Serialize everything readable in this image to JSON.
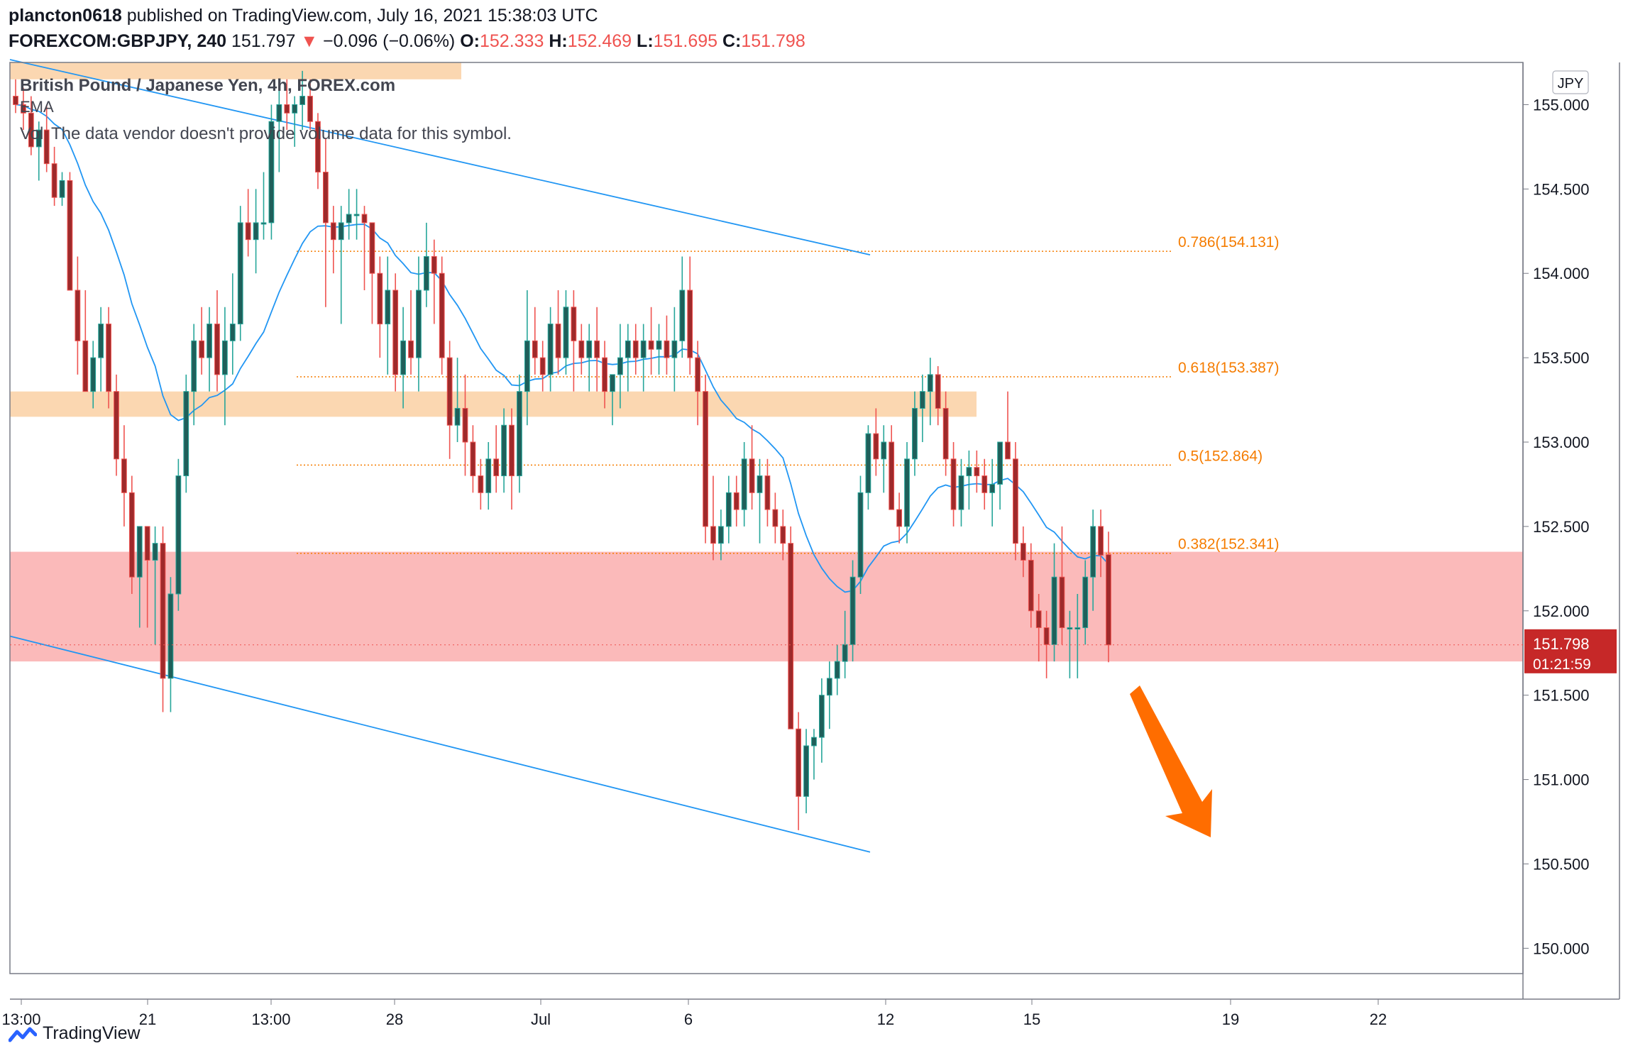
{
  "header": {
    "author": "plancton0618",
    "published_text": "published on TradingView.com, July 16, 2021 15:38:03 UTC",
    "symbol": "FOREXCOM:GBPJPY, 240",
    "last": "151.797",
    "arrow": "▼",
    "change": "−0.096 (−0.06%)",
    "o_label": "O:",
    "o_value": "152.333",
    "h_label": "H:",
    "h_value": "152.469",
    "l_label": "L:",
    "l_value": "151.695",
    "c_label": "C:",
    "c_value": "151.798"
  },
  "legend": {
    "title": "British Pound / Japanese Yen, 4h, FOREX.com",
    "ema": "EMA",
    "vol_prefix": "Vol",
    "volume_note": "The data vendor doesn't provide volume data for this symbol."
  },
  "footer": {
    "brand": "TradingView"
  },
  "colors": {
    "up": "#26a69a",
    "up_fill": "#1f5f5a",
    "down": "#ef5350",
    "down_fill": "#9e2a2b",
    "ema": "#2196f3",
    "channel": "#2196f3",
    "fib": "#f57c00",
    "zone_orange": "#fbd3a8",
    "zone_red": "#fbb3b2",
    "arrow": "#ff6d00",
    "price_tag": "#c62828"
  },
  "chart_data": {
    "type": "candlestick",
    "symbol": "GBPJPY",
    "interval": "4h",
    "currency": "JPY",
    "y_axis": {
      "ticks": [
        "150.000",
        "150.500",
        "151.000",
        "151.500",
        "152.000",
        "152.500",
        "153.000",
        "153.500",
        "154.000",
        "154.500",
        "155.000"
      ],
      "range": [
        149.85,
        155.25
      ]
    },
    "x_axis": {
      "ticks": [
        "13:00",
        "21",
        "13:00",
        "28",
        "Jul",
        "6",
        "12",
        "15",
        "19",
        "22"
      ]
    },
    "current_price": {
      "value": "151.798",
      "countdown": "01:21:59"
    },
    "fibonacci": [
      {
        "label": "0.786(154.131)",
        "level": 0.786,
        "price": 154.131
      },
      {
        "label": "0.618(153.387)",
        "level": 0.618,
        "price": 153.387
      },
      {
        "label": "0.5(152.864)",
        "level": 0.5,
        "price": 152.864
      },
      {
        "label": "0.382(152.341)",
        "level": 0.382,
        "price": 152.341
      }
    ],
    "zones": [
      {
        "kind": "resistance",
        "from": 155.15,
        "to": 155.25
      },
      {
        "kind": "resistance",
        "from": 153.15,
        "to": 153.3
      },
      {
        "kind": "support",
        "from": 151.7,
        "to": 152.35
      }
    ],
    "channel": {
      "upper": {
        "start": 155.25,
        "end": 154.11
      },
      "lower": {
        "start": 151.85,
        "end": 150.57
      }
    },
    "bias_arrow": "down",
    "candles": [
      [
        155.05,
        155.15,
        154.95,
        155.0
      ],
      [
        155.0,
        155.1,
        154.85,
        154.95
      ],
      [
        154.95,
        155.05,
        154.7,
        154.75
      ],
      [
        154.75,
        154.9,
        154.55,
        154.85
      ],
      [
        154.85,
        155.0,
        154.6,
        154.65
      ],
      [
        154.65,
        154.75,
        154.4,
        154.45
      ],
      [
        154.45,
        154.6,
        154.4,
        154.55
      ],
      [
        154.55,
        154.6,
        153.9,
        153.9
      ],
      [
        153.9,
        154.1,
        153.4,
        153.6
      ],
      [
        153.6,
        153.9,
        153.3,
        153.3
      ],
      [
        153.3,
        153.6,
        153.2,
        153.5
      ],
      [
        153.5,
        153.8,
        153.3,
        153.7
      ],
      [
        153.7,
        153.8,
        153.2,
        153.3
      ],
      [
        153.3,
        153.4,
        152.8,
        152.9
      ],
      [
        152.9,
        153.1,
        152.5,
        152.7
      ],
      [
        152.7,
        152.8,
        152.1,
        152.2
      ],
      [
        152.2,
        152.5,
        151.9,
        152.5
      ],
      [
        152.5,
        152.5,
        151.9,
        152.3
      ],
      [
        152.3,
        152.5,
        151.8,
        152.4
      ],
      [
        152.4,
        152.5,
        151.4,
        151.6
      ],
      [
        151.6,
        152.2,
        151.4,
        152.1
      ],
      [
        152.1,
        152.9,
        152.0,
        152.8
      ],
      [
        152.8,
        153.4,
        152.7,
        153.3
      ],
      [
        153.3,
        153.7,
        153.1,
        153.6
      ],
      [
        153.6,
        153.8,
        153.4,
        153.5
      ],
      [
        153.5,
        153.8,
        153.3,
        153.7
      ],
      [
        153.7,
        153.9,
        153.3,
        153.4
      ],
      [
        153.4,
        153.8,
        153.1,
        153.6
      ],
      [
        153.6,
        154.0,
        153.4,
        153.7
      ],
      [
        153.7,
        154.4,
        153.6,
        154.3
      ],
      [
        154.3,
        154.5,
        154.1,
        154.2
      ],
      [
        154.2,
        154.5,
        154.0,
        154.3
      ],
      [
        154.3,
        154.6,
        154.2,
        154.3
      ],
      [
        154.3,
        155.0,
        154.2,
        154.9
      ],
      [
        154.9,
        155.1,
        154.6,
        155.0
      ],
      [
        155.0,
        155.15,
        154.85,
        154.95
      ],
      [
        154.95,
        155.05,
        154.75,
        155.0
      ],
      [
        155.0,
        155.2,
        154.85,
        155.05
      ],
      [
        155.05,
        155.15,
        154.85,
        154.9
      ],
      [
        154.9,
        154.95,
        154.5,
        154.6
      ],
      [
        154.6,
        154.8,
        153.8,
        154.3
      ],
      [
        154.3,
        154.4,
        154.0,
        154.2
      ],
      [
        154.2,
        154.4,
        153.7,
        154.3
      ],
      [
        154.3,
        154.5,
        154.2,
        154.35
      ],
      [
        154.35,
        154.5,
        154.2,
        154.35
      ],
      [
        154.35,
        154.4,
        153.9,
        154.3
      ],
      [
        154.3,
        154.3,
        153.7,
        154.0
      ],
      [
        154.0,
        154.1,
        153.5,
        153.7
      ],
      [
        153.7,
        154.1,
        153.4,
        153.9
      ],
      [
        153.9,
        154.0,
        153.3,
        153.4
      ],
      [
        153.4,
        153.8,
        153.2,
        153.6
      ],
      [
        153.6,
        153.9,
        153.4,
        153.5
      ],
      [
        153.5,
        154.1,
        153.3,
        153.9
      ],
      [
        153.9,
        154.3,
        153.8,
        154.1
      ],
      [
        154.1,
        154.2,
        153.7,
        154.0
      ],
      [
        154.0,
        154.1,
        153.4,
        153.5
      ],
      [
        153.5,
        153.6,
        152.9,
        153.1
      ],
      [
        153.1,
        153.5,
        153.0,
        153.2
      ],
      [
        153.2,
        153.4,
        152.8,
        153.0
      ],
      [
        153.0,
        153.1,
        152.7,
        152.8
      ],
      [
        152.8,
        152.9,
        152.6,
        152.7
      ],
      [
        152.7,
        153.0,
        152.6,
        152.9
      ],
      [
        152.9,
        153.1,
        152.7,
        152.8
      ],
      [
        152.8,
        153.2,
        152.7,
        153.1
      ],
      [
        153.1,
        153.2,
        152.6,
        152.8
      ],
      [
        152.8,
        153.4,
        152.7,
        153.3
      ],
      [
        153.3,
        153.9,
        153.1,
        153.6
      ],
      [
        153.6,
        153.8,
        153.4,
        153.5
      ],
      [
        153.5,
        153.6,
        153.3,
        153.4
      ],
      [
        153.4,
        153.8,
        153.3,
        153.7
      ],
      [
        153.7,
        153.9,
        153.4,
        153.5
      ],
      [
        153.5,
        153.9,
        153.4,
        153.8
      ],
      [
        153.8,
        153.9,
        153.3,
        153.6
      ],
      [
        153.6,
        153.7,
        153.4,
        153.5
      ],
      [
        153.5,
        153.7,
        153.3,
        153.6
      ],
      [
        153.6,
        153.8,
        153.3,
        153.5
      ],
      [
        153.5,
        153.6,
        153.2,
        153.3
      ],
      [
        153.3,
        153.4,
        153.1,
        153.4
      ],
      [
        153.4,
        153.7,
        153.2,
        153.5
      ],
      [
        153.5,
        153.7,
        153.3,
        153.6
      ],
      [
        153.6,
        153.7,
        153.4,
        153.5
      ],
      [
        153.5,
        153.7,
        153.3,
        153.6
      ],
      [
        153.6,
        153.8,
        153.4,
        153.55
      ],
      [
        153.55,
        153.7,
        153.4,
        153.6
      ],
      [
        153.6,
        153.75,
        153.4,
        153.5
      ],
      [
        153.5,
        153.8,
        153.3,
        153.6
      ],
      [
        153.6,
        154.1,
        153.5,
        153.9
      ],
      [
        153.9,
        154.1,
        153.4,
        153.5
      ],
      [
        153.5,
        153.6,
        153.1,
        153.3
      ],
      [
        153.3,
        153.4,
        152.4,
        152.5
      ],
      [
        152.5,
        152.8,
        152.3,
        152.4
      ],
      [
        152.4,
        152.6,
        152.3,
        152.5
      ],
      [
        152.5,
        152.8,
        152.4,
        152.7
      ],
      [
        152.7,
        152.8,
        152.5,
        152.6
      ],
      [
        152.6,
        153.0,
        152.5,
        152.9
      ],
      [
        152.9,
        153.1,
        152.6,
        152.7
      ],
      [
        152.7,
        152.9,
        152.4,
        152.8
      ],
      [
        152.8,
        152.9,
        152.5,
        152.6
      ],
      [
        152.6,
        152.7,
        152.4,
        152.5
      ],
      [
        152.5,
        152.6,
        152.3,
        152.4
      ],
      [
        152.4,
        152.5,
        151.3,
        151.3
      ],
      [
        151.3,
        151.4,
        150.7,
        150.9
      ],
      [
        150.9,
        151.3,
        150.8,
        151.2
      ],
      [
        151.2,
        151.3,
        151.0,
        151.25
      ],
      [
        151.25,
        151.6,
        151.1,
        151.5
      ],
      [
        151.5,
        151.7,
        151.3,
        151.6
      ],
      [
        151.6,
        151.8,
        151.5,
        151.7
      ],
      [
        151.7,
        152.0,
        151.6,
        151.8
      ],
      [
        151.8,
        152.3,
        151.7,
        152.2
      ],
      [
        152.2,
        152.8,
        152.1,
        152.7
      ],
      [
        152.7,
        153.1,
        152.6,
        153.05
      ],
      [
        153.05,
        153.2,
        152.8,
        152.9
      ],
      [
        152.9,
        153.1,
        152.7,
        153.0
      ],
      [
        153.0,
        153.1,
        152.6,
        152.6
      ],
      [
        152.6,
        152.7,
        152.4,
        152.5
      ],
      [
        152.5,
        153.0,
        152.4,
        152.9
      ],
      [
        152.9,
        153.3,
        152.8,
        153.2
      ],
      [
        153.2,
        153.4,
        153.0,
        153.3
      ],
      [
        153.3,
        153.5,
        153.1,
        153.4
      ],
      [
        153.4,
        153.45,
        153.1,
        153.2
      ],
      [
        153.2,
        153.3,
        152.8,
        152.9
      ],
      [
        152.9,
        153.0,
        152.5,
        152.6
      ],
      [
        152.6,
        152.9,
        152.5,
        152.8
      ],
      [
        152.8,
        152.95,
        152.6,
        152.85
      ],
      [
        152.85,
        152.95,
        152.7,
        152.8
      ],
      [
        152.8,
        152.9,
        152.6,
        152.7
      ],
      [
        152.7,
        152.9,
        152.5,
        152.75
      ],
      [
        152.75,
        153.0,
        152.6,
        153.0
      ],
      [
        153.0,
        153.3,
        152.9,
        152.9
      ],
      [
        152.9,
        153.0,
        152.3,
        152.4
      ],
      [
        152.4,
        152.5,
        152.2,
        152.3
      ],
      [
        152.3,
        152.4,
        151.9,
        152.0
      ],
      [
        152.0,
        152.1,
        151.7,
        151.9
      ],
      [
        151.9,
        152.0,
        151.6,
        151.8
      ],
      [
        151.8,
        152.4,
        151.7,
        152.2
      ],
      [
        152.2,
        152.5,
        151.8,
        151.9
      ],
      [
        151.9,
        152.0,
        151.6,
        151.9
      ],
      [
        151.9,
        152.1,
        151.6,
        151.9
      ],
      [
        151.9,
        152.3,
        151.8,
        152.2
      ],
      [
        152.2,
        152.6,
        152.0,
        152.5
      ],
      [
        152.5,
        152.6,
        152.2,
        152.33
      ],
      [
        152.333,
        152.469,
        151.695,
        151.798
      ]
    ]
  }
}
